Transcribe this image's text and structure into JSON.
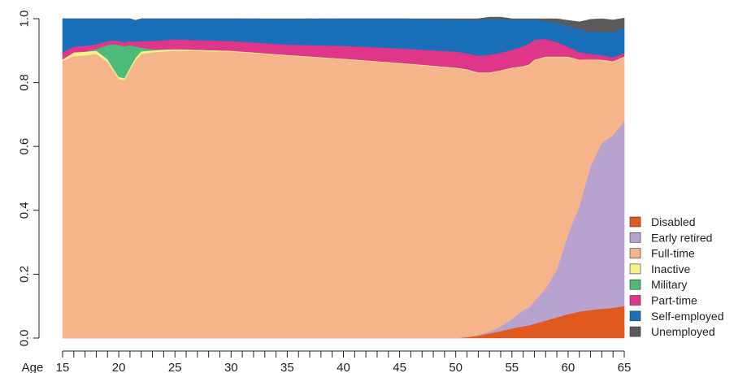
{
  "chart_data": {
    "type": "area",
    "xlabel": "Age",
    "xlim": [
      15,
      65
    ],
    "ylim": [
      0,
      1
    ],
    "x_ticks": [
      15,
      20,
      25,
      30,
      35,
      40,
      45,
      50,
      55,
      60,
      65
    ],
    "y_ticks": [
      "0.0",
      "0.2",
      "0.4",
      "0.6",
      "0.8",
      "1.0"
    ],
    "legend_position": "bottom-right",
    "x": [
      15,
      16,
      17,
      18,
      19,
      19.5,
      20,
      20.5,
      21,
      21.5,
      22,
      23,
      25,
      30,
      35,
      40,
      45,
      50,
      51,
      52,
      53,
      54,
      55,
      56,
      56.5,
      57,
      58,
      59,
      60,
      61,
      62,
      63,
      64,
      65
    ],
    "series": [
      {
        "name": "Disabled",
        "color": "#E05A1E",
        "values": [
          0,
          0,
          0,
          0,
          0,
          0,
          0,
          0,
          0,
          0,
          0,
          0,
          0,
          0,
          0,
          0,
          0,
          0,
          0.003,
          0.008,
          0.015,
          0.022,
          0.03,
          0.037,
          0.04,
          0.045,
          0.055,
          0.065,
          0.075,
          0.083,
          0.088,
          0.092,
          0.095,
          0.1
        ]
      },
      {
        "name": "Early retired",
        "color": "#B8A2D0",
        "values": [
          0,
          0,
          0,
          0,
          0,
          0,
          0,
          0,
          0,
          0,
          0,
          0,
          0,
          0,
          0,
          0,
          0,
          0,
          0,
          0.002,
          0.005,
          0.015,
          0.03,
          0.05,
          0.055,
          0.07,
          0.1,
          0.15,
          0.25,
          0.33,
          0.45,
          0.52,
          0.54,
          0.58
        ]
      },
      {
        "name": "Full-time",
        "color": "#F5B48A",
        "values": [
          0.868,
          0.883,
          0.885,
          0.89,
          0.865,
          0.838,
          0.812,
          0.808,
          0.84,
          0.87,
          0.89,
          0.895,
          0.9,
          0.897,
          0.885,
          0.873,
          0.86,
          0.845,
          0.837,
          0.82,
          0.81,
          0.8,
          0.785,
          0.763,
          0.76,
          0.755,
          0.725,
          0.665,
          0.555,
          0.457,
          0.333,
          0.258,
          0.23,
          0.2
        ]
      },
      {
        "name": "Inactive",
        "color": "#F8F088",
        "values": [
          0.005,
          0.012,
          0.012,
          0.01,
          0.008,
          0.007,
          0.006,
          0.006,
          0.007,
          0.008,
          0.008,
          0.006,
          0.005,
          0.003,
          0.002,
          0.002,
          0.002,
          0.002,
          0.002,
          0.002,
          0.002,
          0.002,
          0.002,
          0.002,
          0.002,
          0.002,
          0.002,
          0.002,
          0.002,
          0.002,
          0.002,
          0.002,
          0.002,
          0.002
        ]
      },
      {
        "name": "Military",
        "color": "#4DBA7A",
        "values": [
          0,
          0,
          0,
          0.005,
          0.045,
          0.075,
          0.1,
          0.1,
          0.07,
          0.035,
          0.012,
          0.003,
          0,
          0,
          0,
          0,
          0,
          0,
          0,
          0,
          0,
          0,
          0,
          0,
          0,
          0,
          0,
          0,
          0,
          0,
          0,
          0,
          0,
          0
        ]
      },
      {
        "name": "Part-time",
        "color": "#E0368A",
        "values": [
          0.022,
          0.018,
          0.018,
          0.015,
          0.012,
          0.012,
          0.012,
          0.012,
          0.013,
          0.015,
          0.02,
          0.026,
          0.03,
          0.03,
          0.032,
          0.04,
          0.045,
          0.05,
          0.05,
          0.052,
          0.055,
          0.055,
          0.055,
          0.062,
          0.065,
          0.062,
          0.055,
          0.045,
          0.03,
          0.023,
          0.017,
          0.014,
          0.012,
          0.01
        ]
      },
      {
        "name": "Self-employed",
        "color": "#1A70B8",
        "values": [
          0.105,
          0.087,
          0.085,
          0.08,
          0.07,
          0.068,
          0.07,
          0.074,
          0.07,
          0.067,
          0.07,
          0.07,
          0.065,
          0.07,
          0.08,
          0.085,
          0.093,
          0.1,
          0.105,
          0.112,
          0.113,
          0.105,
          0.095,
          0.083,
          0.075,
          0.063,
          0.055,
          0.061,
          0.065,
          0.072,
          0.068,
          0.074,
          0.077,
          0.08
        ]
      },
      {
        "name": "Unemployed",
        "color": "#5A5A5A",
        "values": [
          0,
          0,
          0,
          0,
          0,
          0,
          0,
          0,
          0,
          0,
          0,
          0,
          0,
          0,
          0.001,
          0,
          0,
          0.003,
          0.003,
          0.004,
          0.005,
          0.006,
          0.003,
          0.003,
          0.003,
          0.003,
          0.008,
          0.012,
          0.018,
          0.023,
          0.04,
          0.04,
          0.04,
          0.03
        ]
      }
    ]
  }
}
